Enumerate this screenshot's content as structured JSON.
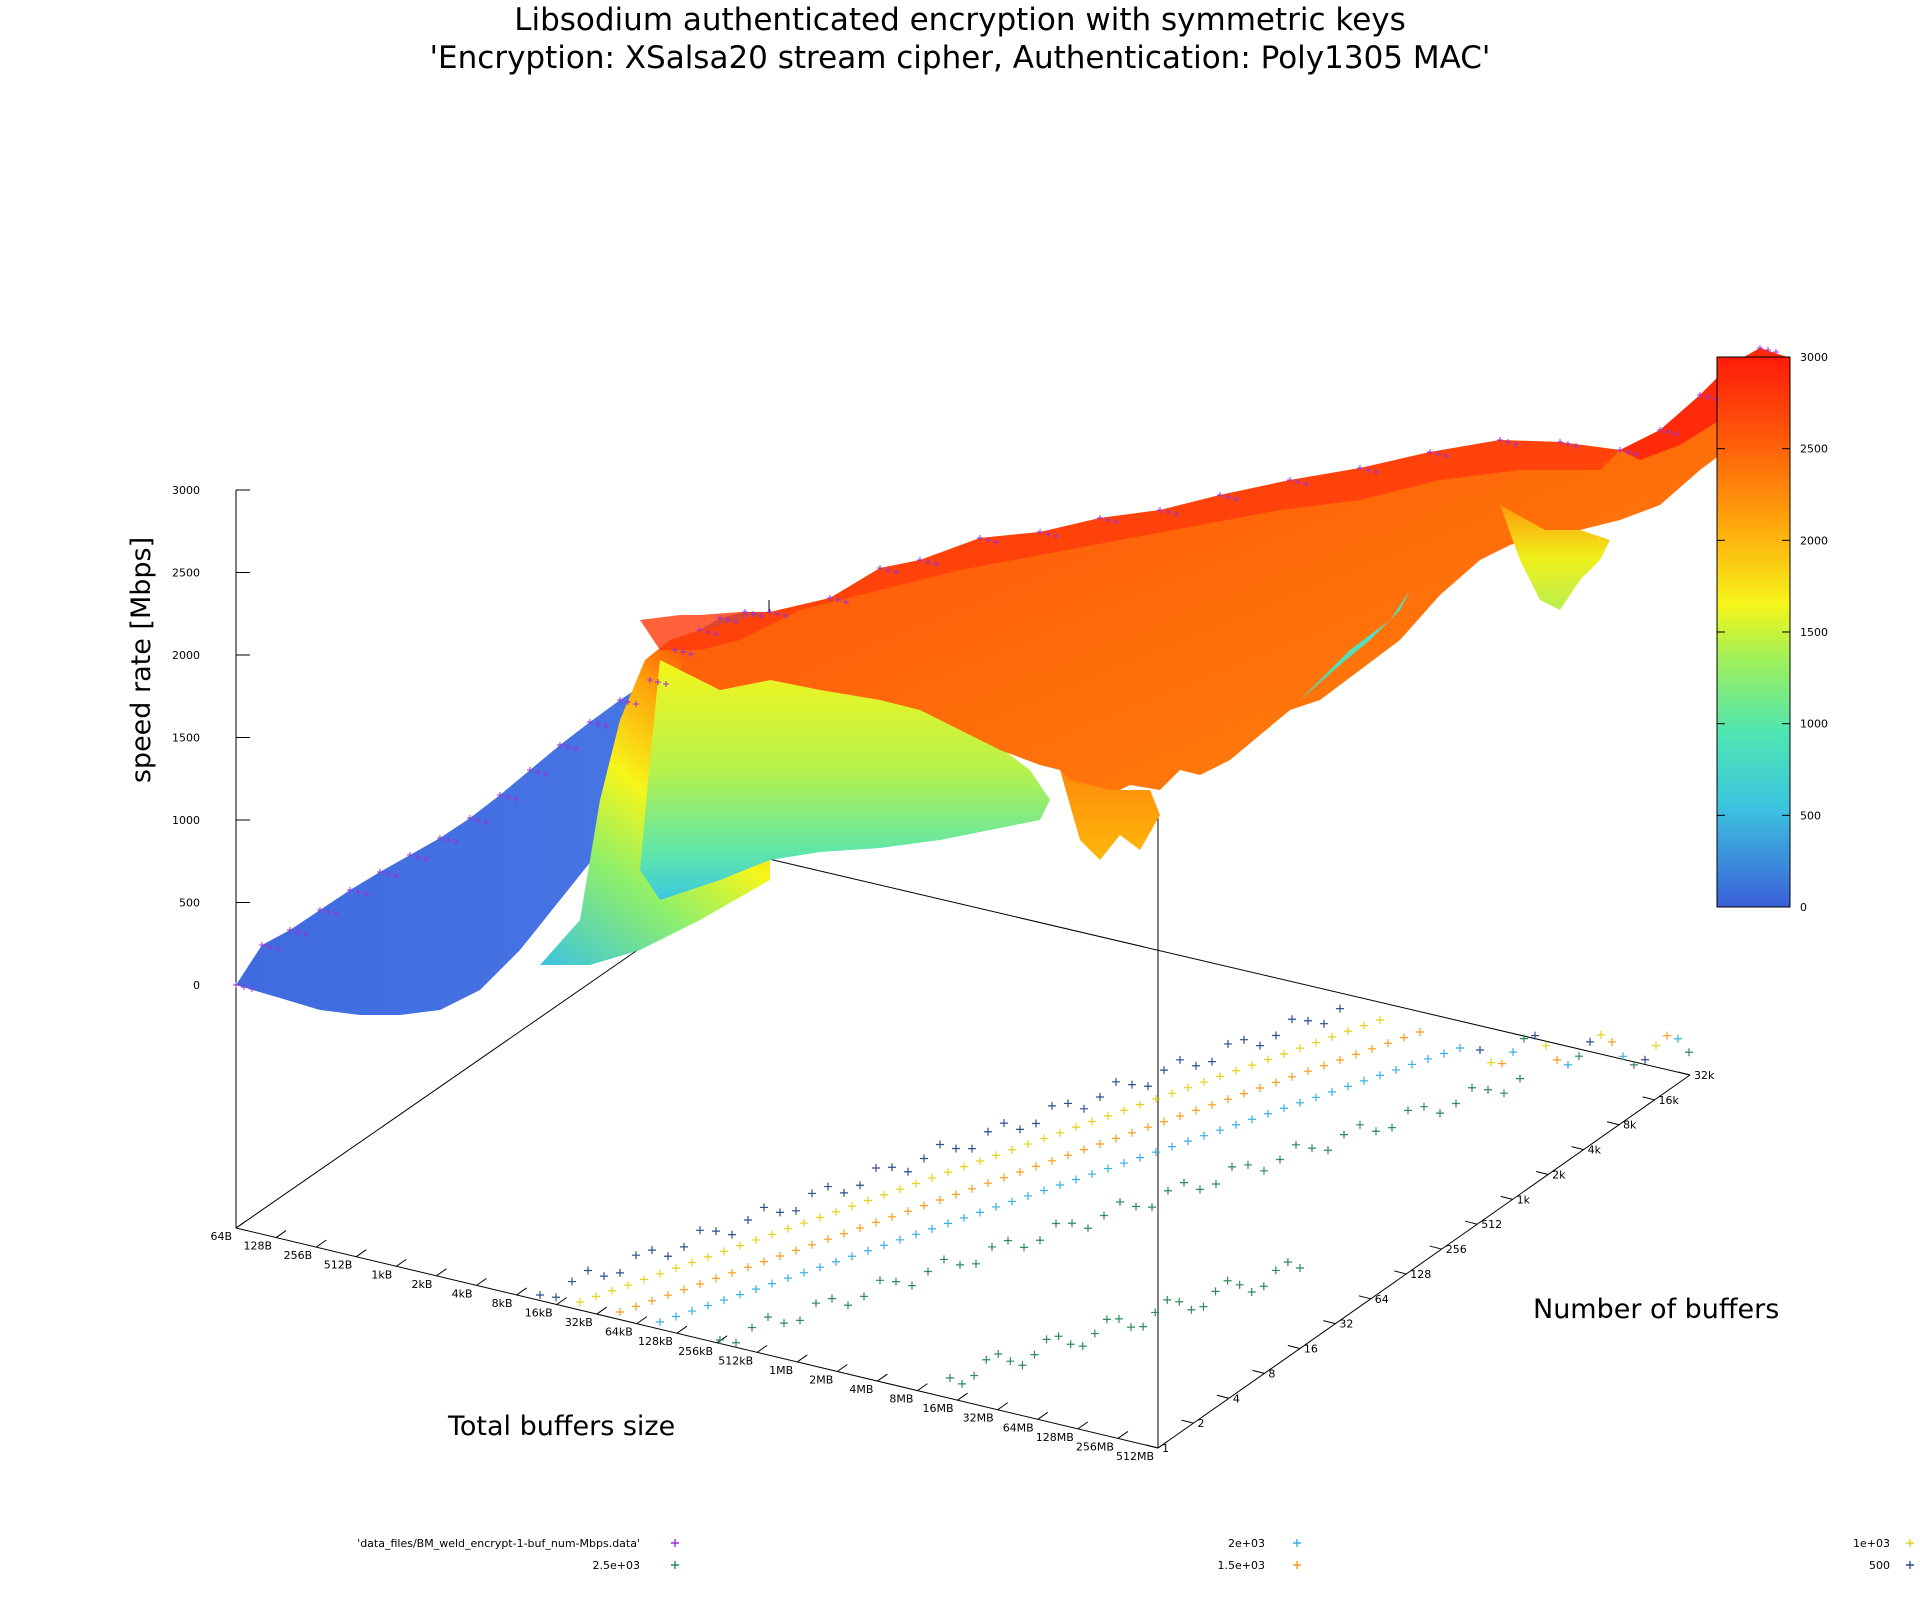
{
  "chart_data": {
    "type": "surface3d",
    "title": "Libsodium authenticated encryption with symmetric keys",
    "subtitle": "'Encryption: XSalsa20 stream cipher, Authentication: Poly1305 MAC'",
    "zlabel": "speed rate [Mbps]",
    "xlabel": "Total buffers size",
    "ylabel": "Number of buffers",
    "zlim": [
      0,
      3000
    ],
    "z_ticks": [
      "0",
      "500",
      "1000",
      "1500",
      "2000",
      "2500",
      "3000"
    ],
    "x_ticks": [
      "64B",
      "128B",
      "256B",
      "512B",
      "1kB",
      "2kB",
      "4kB",
      "8kB",
      "16kB",
      "32kB",
      "64kB",
      "128kB",
      "256kB",
      "512kB",
      "1MB",
      "2MB",
      "4MB",
      "8MB",
      "16MB",
      "32MB",
      "64MB",
      "128MB",
      "256MB",
      "512MB"
    ],
    "y_ticks": [
      "1",
      "2",
      "4",
      "8",
      "16",
      "32",
      "64",
      "128",
      "256",
      "512",
      "1k",
      "2k",
      "4k",
      "8k",
      "16k",
      "32k"
    ],
    "colorbar": {
      "range": [
        0,
        3000
      ],
      "ticks": [
        "0",
        "500",
        "1000",
        "1500",
        "2000",
        "2500",
        "3000"
      ],
      "palette": [
        "#3a5fd9",
        "#3cc3e0",
        "#50e6b0",
        "#9ff05a",
        "#f6f61a",
        "#ffa40a",
        "#ff5a0a",
        "#ff1a0a"
      ]
    },
    "contour_levels": [
      500,
      1000,
      1500,
      2000,
      2500
    ],
    "legend": [
      {
        "label": "'data_files/BM_weld_encrypt-1-buf_num-Mbps.data'",
        "color": "#9b30d9"
      },
      {
        "label": "2.5e+03",
        "color": "#2e8b57"
      },
      {
        "label": "2e+03",
        "color": "#3ab0e0"
      },
      {
        "label": "1.5e+03",
        "color": "#ff9a1a"
      },
      {
        "label": "1e+03",
        "color": "#e6d21a"
      },
      {
        "label": "500",
        "color": "#2f4f8f"
      }
    ],
    "front_edge_speed": [
      {
        "x": "64B",
        "speed": 0
      },
      {
        "x": "128B",
        "speed": 240
      },
      {
        "x": "256B",
        "speed": 380
      },
      {
        "x": "512B",
        "speed": 510
      },
      {
        "x": "1kB",
        "speed": 680
      },
      {
        "x": "2kB",
        "speed": 860
      },
      {
        "x": "4kB",
        "speed": 1050
      },
      {
        "x": "8kB",
        "speed": 1270
      },
      {
        "x": "16kB",
        "speed": 1460
      },
      {
        "x": "32kB",
        "speed": 1640
      },
      {
        "x": "64kB",
        "speed": 2100
      },
      {
        "x": "128kB",
        "speed": 2260
      },
      {
        "x": "256kB",
        "speed": 2250
      },
      {
        "x": "512kB",
        "speed": 2290
      },
      {
        "x": "1MB",
        "speed": 2380
      },
      {
        "x": "2MB",
        "speed": 2470
      },
      {
        "x": "4MB",
        "speed": 2560
      },
      {
        "x": "8MB",
        "speed": 2580
      },
      {
        "x": "16MB",
        "speed": 2620
      },
      {
        "x": "32MB",
        "speed": 2700
      },
      {
        "x": "64MB",
        "speed": 2760
      },
      {
        "x": "128MB",
        "speed": 2820
      },
      {
        "x": "256MB",
        "speed": 2890
      },
      {
        "x": "512MB",
        "speed": 2980
      }
    ]
  }
}
